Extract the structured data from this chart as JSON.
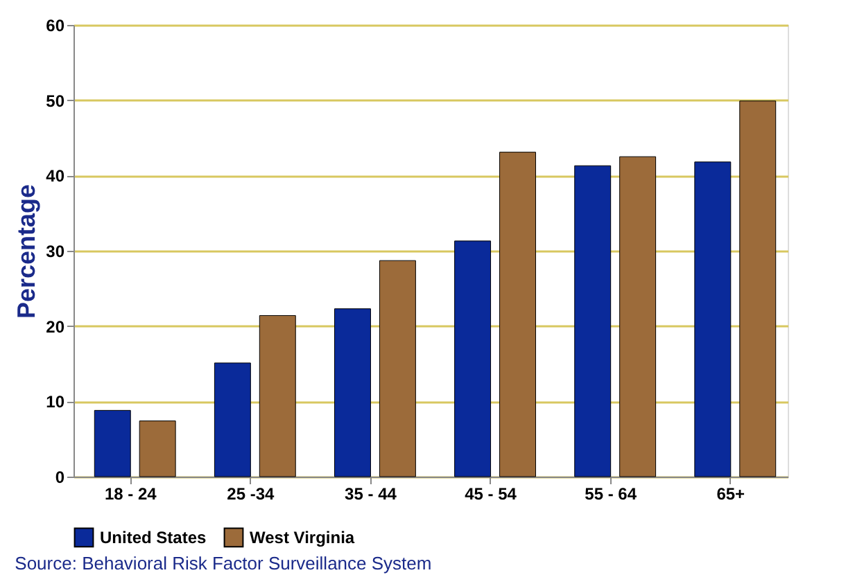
{
  "chart_data": {
    "type": "bar",
    "ylabel": "Percentage",
    "categories": [
      "18 - 24",
      "25 -34",
      "35 - 44",
      "45 - 54",
      "55 - 64",
      "65+"
    ],
    "series": [
      {
        "name": "United States",
        "color": "#0a2a9a",
        "values": [
          8.8,
          15.1,
          22.3,
          31.3,
          41.3,
          41.8
        ]
      },
      {
        "name": "West Virginia",
        "color": "#9c6b3a",
        "values": [
          7.4,
          21.4,
          28.7,
          43.1,
          42.5,
          49.9
        ]
      }
    ],
    "ylim": [
      0,
      60
    ],
    "yticks": [
      0,
      10,
      20,
      30,
      40,
      50,
      60
    ],
    "grid": "y",
    "legend": "bottom",
    "annotations": [
      "Source: Behavioral Risk Factor Surveillance System"
    ]
  }
}
